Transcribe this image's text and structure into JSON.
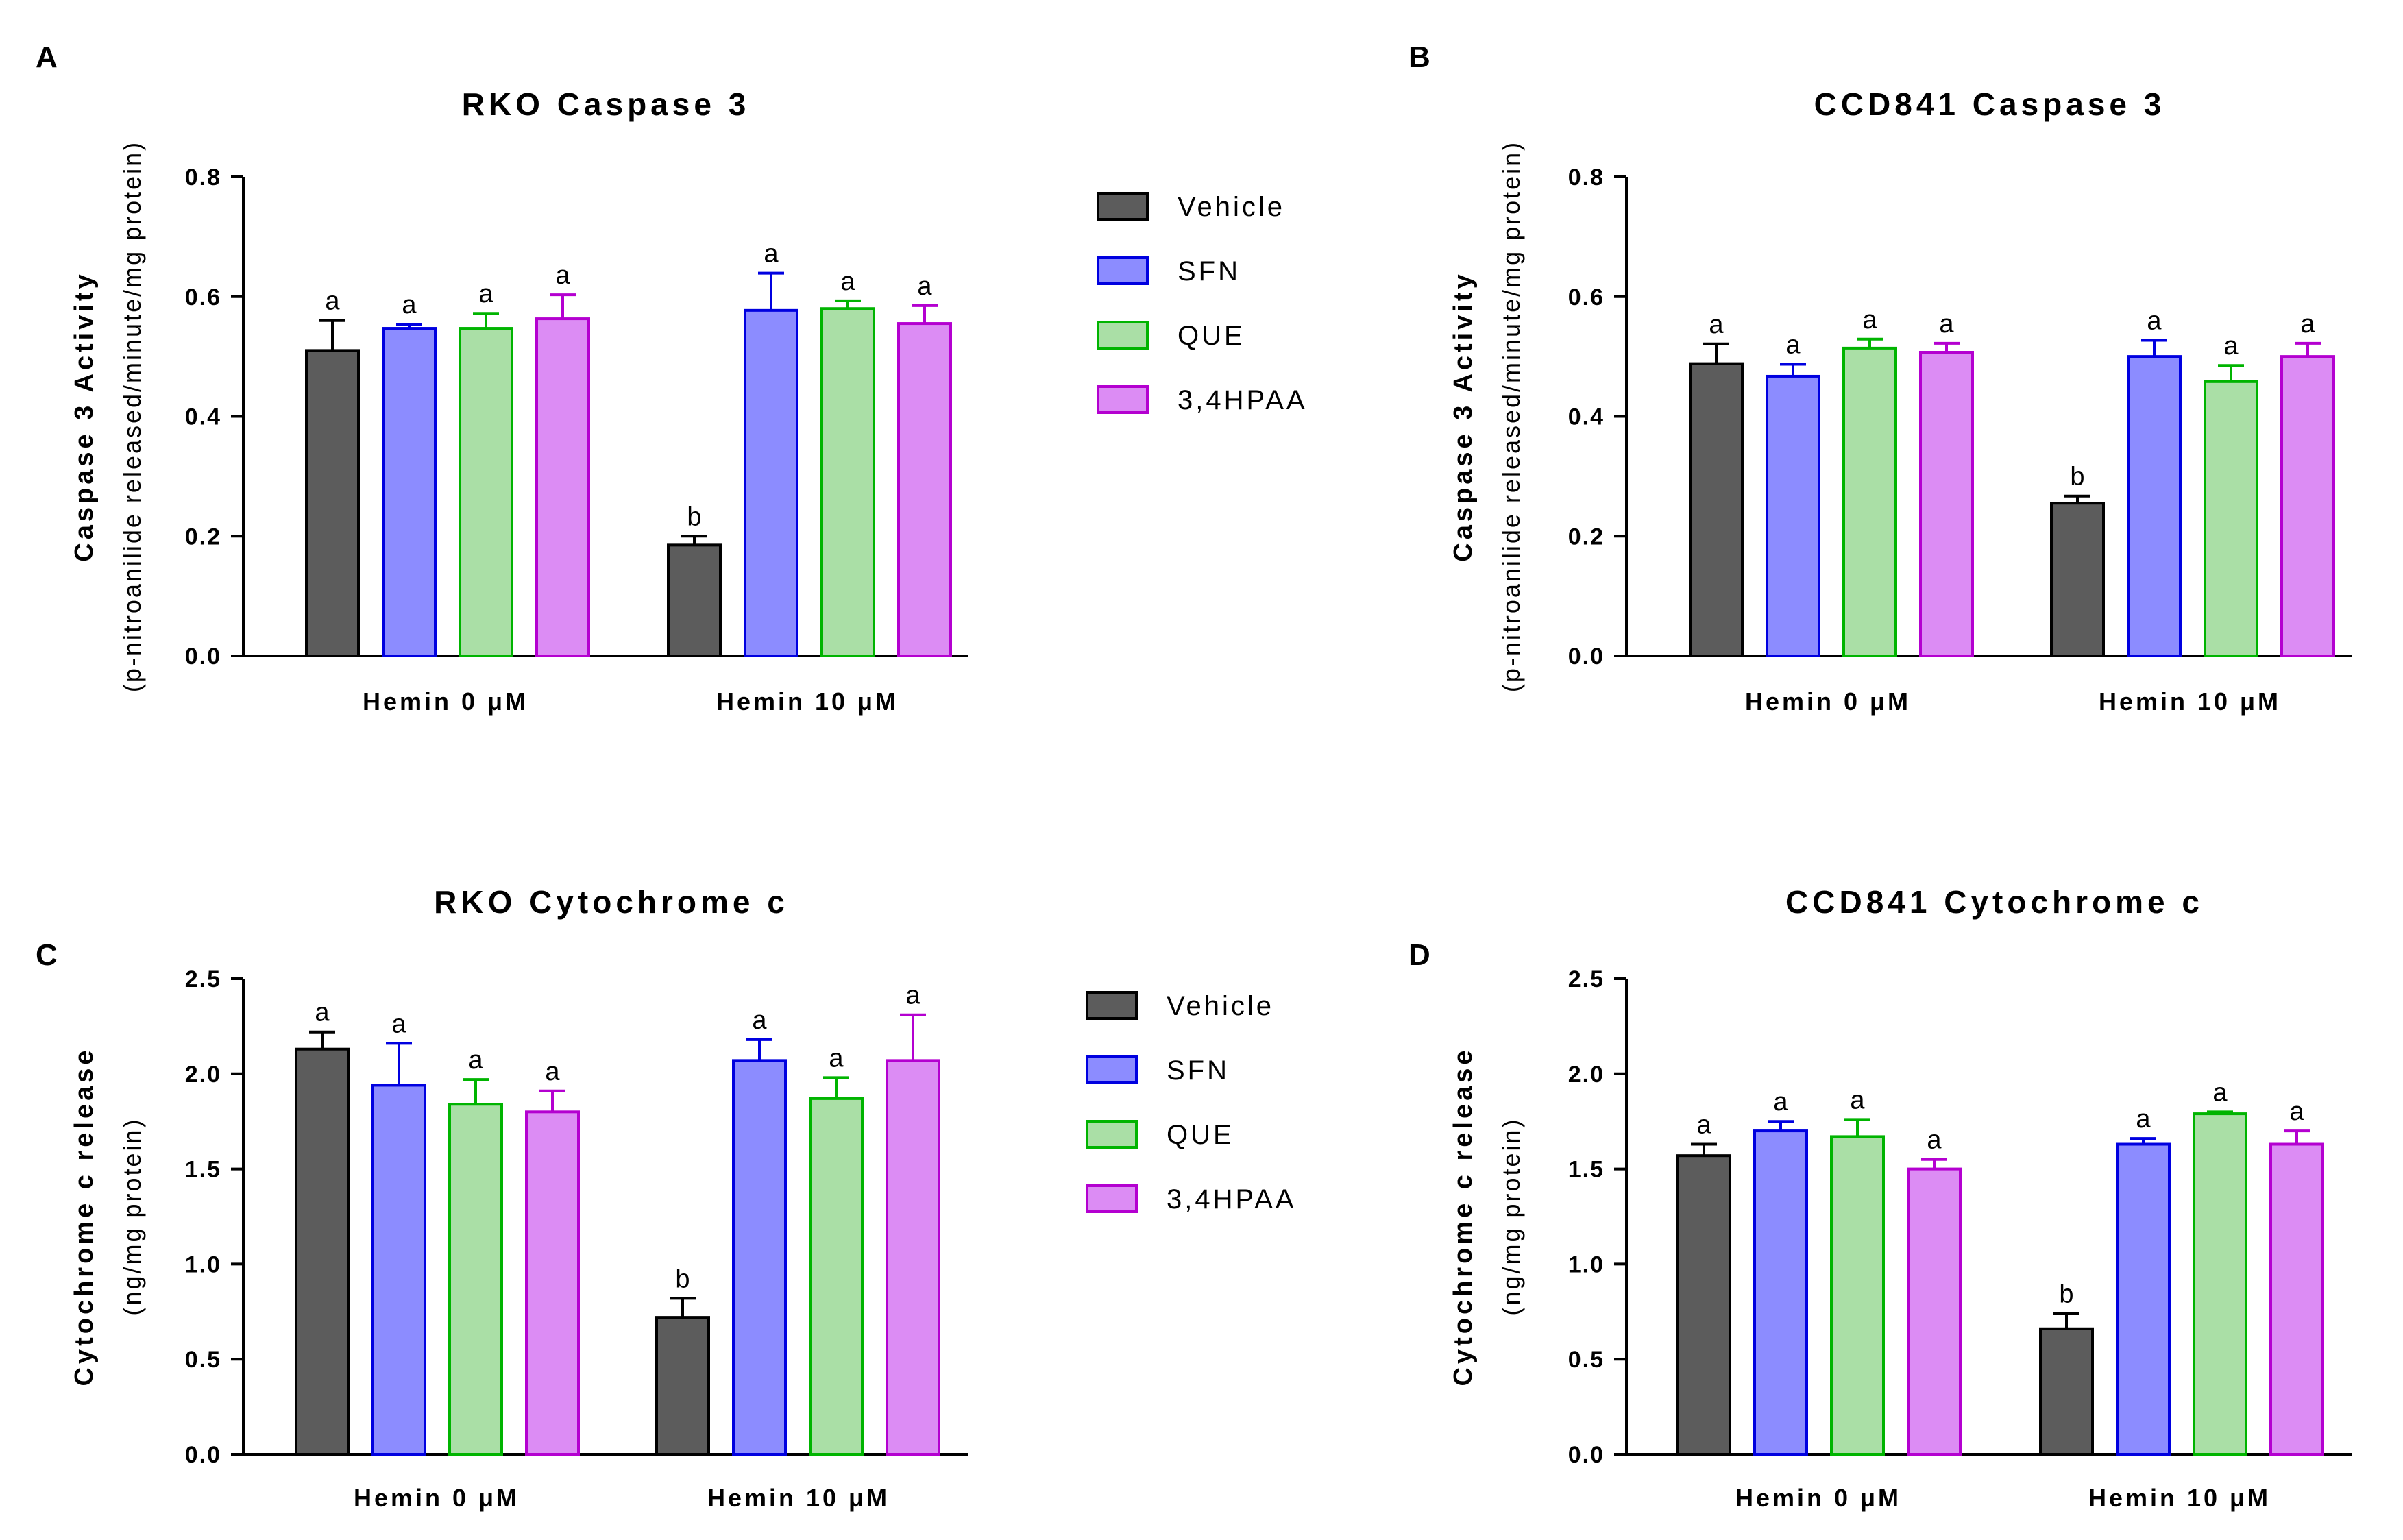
{
  "series_colors": [
    {
      "fill": "#5c5c5c",
      "stroke": "#000000"
    },
    {
      "fill": "#8c8cff",
      "stroke": "#0000e0"
    },
    {
      "fill": "#aadfa6",
      "stroke": "#00b400"
    },
    {
      "fill": "#dc8cf4",
      "stroke": "#b400d0"
    }
  ],
  "legend_items": [
    "Vehicle",
    "SFN",
    "QUE",
    "3,4HPAA"
  ],
  "chart_data": [
    {
      "panel": "A",
      "type": "bar",
      "title": "RKO Caspase 3",
      "ylabel": "Caspase 3 Activity",
      "ylabel_sub": "(p-nitroanilide released/minute/mg protein)",
      "categories": [
        "Hemin 0 μM",
        "Hemin 10 μM"
      ],
      "ylim": [
        0,
        0.8
      ],
      "yticks": [
        "0.0",
        "0.2",
        "0.4",
        "0.6",
        "0.8"
      ],
      "series": [
        {
          "name": "Vehicle",
          "values": [
            0.51,
            0.185
          ],
          "errors": [
            0.05,
            0.015
          ],
          "labels": [
            "a",
            "b"
          ]
        },
        {
          "name": "SFN",
          "values": [
            0.547,
            0.577
          ],
          "errors": [
            0.007,
            0.062
          ],
          "labels": [
            "a",
            "a"
          ]
        },
        {
          "name": "QUE",
          "values": [
            0.547,
            0.58
          ],
          "errors": [
            0.025,
            0.013
          ],
          "labels": [
            "a",
            "a"
          ]
        },
        {
          "name": "3,4HPAA",
          "values": [
            0.563,
            0.555
          ],
          "errors": [
            0.04,
            0.03
          ],
          "labels": [
            "a",
            "a"
          ]
        }
      ]
    },
    {
      "panel": "B",
      "type": "bar",
      "title": "CCD841 Caspase 3",
      "ylabel": "Caspase 3 Activity",
      "ylabel_sub": "(p-nitroanilide released/minute/mg protein)",
      "categories": [
        "Hemin 0 μM",
        "Hemin 10 μM"
      ],
      "ylim": [
        0,
        0.8
      ],
      "yticks": [
        "0.0",
        "0.2",
        "0.4",
        "0.6",
        "0.8"
      ],
      "series": [
        {
          "name": "Vehicle",
          "values": [
            0.488,
            0.255
          ],
          "errors": [
            0.033,
            0.012
          ],
          "labels": [
            "a",
            "b"
          ]
        },
        {
          "name": "SFN",
          "values": [
            0.467,
            0.5
          ],
          "errors": [
            0.02,
            0.027
          ],
          "labels": [
            "a",
            "a"
          ]
        },
        {
          "name": "QUE",
          "values": [
            0.514,
            0.458
          ],
          "errors": [
            0.015,
            0.027
          ],
          "labels": [
            "a",
            "a"
          ]
        },
        {
          "name": "3,4HPAA",
          "values": [
            0.507,
            0.5
          ],
          "errors": [
            0.015,
            0.022
          ],
          "labels": [
            "a",
            "a"
          ]
        }
      ]
    },
    {
      "panel": "C",
      "type": "bar",
      "title": "RKO Cytochrome c",
      "ylabel": "Cytochrome c release",
      "ylabel_sub": "(ng/mg protein)",
      "categories": [
        "Hemin 0 μM",
        "Hemin 10 μM"
      ],
      "ylim": [
        0,
        2.5
      ],
      "yticks": [
        "0.0",
        "0.5",
        "1.0",
        "1.5",
        "2.0",
        "2.5"
      ],
      "series": [
        {
          "name": "Vehicle",
          "values": [
            2.13,
            0.72
          ],
          "errors": [
            0.09,
            0.1
          ],
          "labels": [
            "a",
            "b"
          ]
        },
        {
          "name": "SFN",
          "values": [
            1.94,
            2.07
          ],
          "errors": [
            0.22,
            0.11
          ],
          "labels": [
            "a",
            "a"
          ]
        },
        {
          "name": "QUE",
          "values": [
            1.84,
            1.87
          ],
          "errors": [
            0.13,
            0.11
          ],
          "labels": [
            "a",
            "a"
          ]
        },
        {
          "name": "3,4HPAA",
          "values": [
            1.8,
            2.07
          ],
          "errors": [
            0.11,
            0.24
          ],
          "labels": [
            "a",
            "a"
          ]
        }
      ]
    },
    {
      "panel": "D",
      "type": "bar",
      "title": "CCD841 Cytochrome c",
      "ylabel": "Cytochrome c release",
      "ylabel_sub": "(ng/mg protein)",
      "categories": [
        "Hemin 0 μM",
        "Hemin 10 μM"
      ],
      "ylim": [
        0,
        2.5
      ],
      "yticks": [
        "0.0",
        "0.5",
        "1.0",
        "1.5",
        "2.0",
        "2.5"
      ],
      "series": [
        {
          "name": "Vehicle",
          "values": [
            1.57,
            0.66
          ],
          "errors": [
            0.06,
            0.08
          ],
          "labels": [
            "a",
            "b"
          ]
        },
        {
          "name": "SFN",
          "values": [
            1.7,
            1.63
          ],
          "errors": [
            0.05,
            0.03
          ],
          "labels": [
            "a",
            "a"
          ]
        },
        {
          "name": "QUE",
          "values": [
            1.67,
            1.79
          ],
          "errors": [
            0.09,
            0.01
          ],
          "labels": [
            "a",
            "a"
          ]
        },
        {
          "name": "3,4HPAA",
          "values": [
            1.5,
            1.63
          ],
          "errors": [
            0.05,
            0.07
          ],
          "labels": [
            "a",
            "a"
          ]
        }
      ]
    }
  ]
}
